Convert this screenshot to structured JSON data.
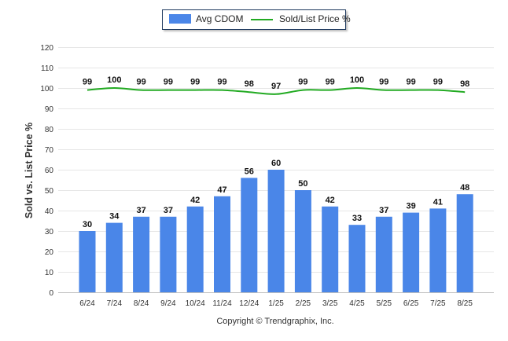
{
  "chart_data": {
    "type": "bar",
    "categories": [
      "6/24",
      "7/24",
      "8/24",
      "9/24",
      "10/24",
      "11/24",
      "12/24",
      "1/25",
      "2/25",
      "3/25",
      "4/25",
      "5/25",
      "6/25",
      "7/25",
      "8/25"
    ],
    "series": [
      {
        "name": "Avg CDOM",
        "type": "bar",
        "color": "#4a86e8",
        "values": [
          30,
          34,
          37,
          37,
          42,
          47,
          56,
          60,
          50,
          42,
          33,
          37,
          39,
          41,
          48
        ]
      },
      {
        "name": "Sold/List Price %",
        "type": "line",
        "color": "#22aa22",
        "values": [
          99,
          100,
          99,
          99,
          99,
          99,
          98,
          97,
          99,
          99,
          100,
          99,
          99,
          99,
          98
        ]
      }
    ],
    "ylabel": "Sold vs. List Price %",
    "ylim": [
      0,
      120
    ],
    "yticks": [
      0,
      10,
      20,
      30,
      40,
      50,
      60,
      70,
      80,
      90,
      100,
      110,
      120
    ],
    "grid": true,
    "legend_position": "top-center"
  },
  "footer": {
    "credit": "Copyright © Trendgraphix, Inc."
  }
}
